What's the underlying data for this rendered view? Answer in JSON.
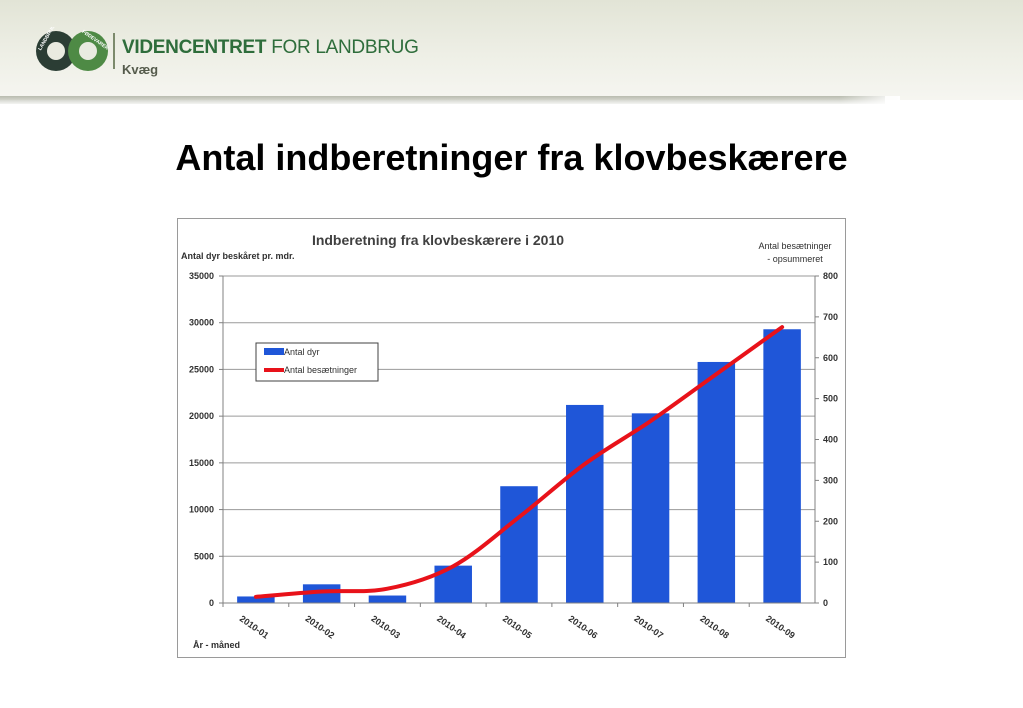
{
  "header": {
    "brand_bold": "VIDENCENTRET",
    "brand_light": "FOR LANDBRUG",
    "subtitle": "Kvæg",
    "logo_top_text": "FØDEVARER",
    "logo_left_text": "LANDBRUG",
    "colors": {
      "brand": "#2e6d3b",
      "logo_dark": "#2b3d34",
      "logo_ring": "#4e8a45"
    }
  },
  "page_title": "Antal indberetninger fra klovbeskærere",
  "chart_data": {
    "type": "bar",
    "title": "Indberetning fra klovbeskærere i 2010",
    "xlabel": "År - måned",
    "ylabel": "Antal dyr beskåret pr. mdr.",
    "y2label_line1": "Antal besætninger",
    "y2label_line2": "- opsummeret",
    "categories": [
      "2010-01",
      "2010-02",
      "2010-03",
      "2010-04",
      "2010-05",
      "2010-06",
      "2010-07",
      "2010-08",
      "2010-09"
    ],
    "ylim": [
      0,
      35000
    ],
    "yticks": [
      "0",
      "5000",
      "10000",
      "15000",
      "20000",
      "25000",
      "30000",
      "35000"
    ],
    "y2lim": [
      0,
      800
    ],
    "y2ticks": [
      "0",
      "100",
      "200",
      "300",
      "400",
      "500",
      "600",
      "700",
      "800"
    ],
    "grid": true,
    "legend_position": "top-left",
    "series": [
      {
        "name": "Antal dyr",
        "type": "bar",
        "axis": "left",
        "color": "#1f56d8",
        "values": [
          700,
          2000,
          800,
          4000,
          12500,
          21200,
          20300,
          25800,
          29300
        ]
      },
      {
        "name": "Antal besætninger",
        "type": "line",
        "axis": "right",
        "color": "#e8121a",
        "values": [
          15,
          28,
          35,
          90,
          210,
          340,
          445,
          560,
          675
        ]
      }
    ]
  }
}
